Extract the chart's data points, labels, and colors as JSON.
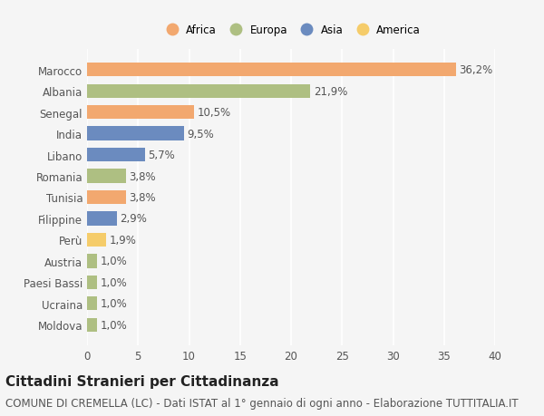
{
  "categories": [
    "Marocco",
    "Albania",
    "Senegal",
    "India",
    "Libano",
    "Romania",
    "Tunisia",
    "Filippine",
    "Perù",
    "Austria",
    "Paesi Bassi",
    "Ucraina",
    "Moldova"
  ],
  "values": [
    36.2,
    21.9,
    10.5,
    9.5,
    5.7,
    3.8,
    3.8,
    2.9,
    1.9,
    1.0,
    1.0,
    1.0,
    1.0
  ],
  "labels": [
    "36,2%",
    "21,9%",
    "10,5%",
    "9,5%",
    "5,7%",
    "3,8%",
    "3,8%",
    "2,9%",
    "1,9%",
    "1,0%",
    "1,0%",
    "1,0%",
    "1,0%"
  ],
  "colors": [
    "#F2A86F",
    "#AEBF82",
    "#F2A86F",
    "#6B8BBF",
    "#6B8BBF",
    "#AEBF82",
    "#F2A86F",
    "#6B8BBF",
    "#F5CC6A",
    "#AEBF82",
    "#AEBF82",
    "#AEBF82",
    "#AEBF82"
  ],
  "continent_colors": {
    "Africa": "#F2A86F",
    "Europa": "#AEBF82",
    "Asia": "#6B8BBF",
    "America": "#F5CC6A"
  },
  "xlim": [
    0,
    40
  ],
  "xticks": [
    0,
    5,
    10,
    15,
    20,
    25,
    30,
    35,
    40
  ],
  "title": "Cittadini Stranieri per Cittadinanza",
  "subtitle": "COMUNE DI CREMELLA (LC) - Dati ISTAT al 1° gennaio di ogni anno - Elaborazione TUTTITALIA.IT",
  "bg_color": "#f5f5f5",
  "bar_height": 0.65,
  "title_fontsize": 11,
  "subtitle_fontsize": 8.5,
  "label_fontsize": 8.5,
  "tick_fontsize": 8.5
}
